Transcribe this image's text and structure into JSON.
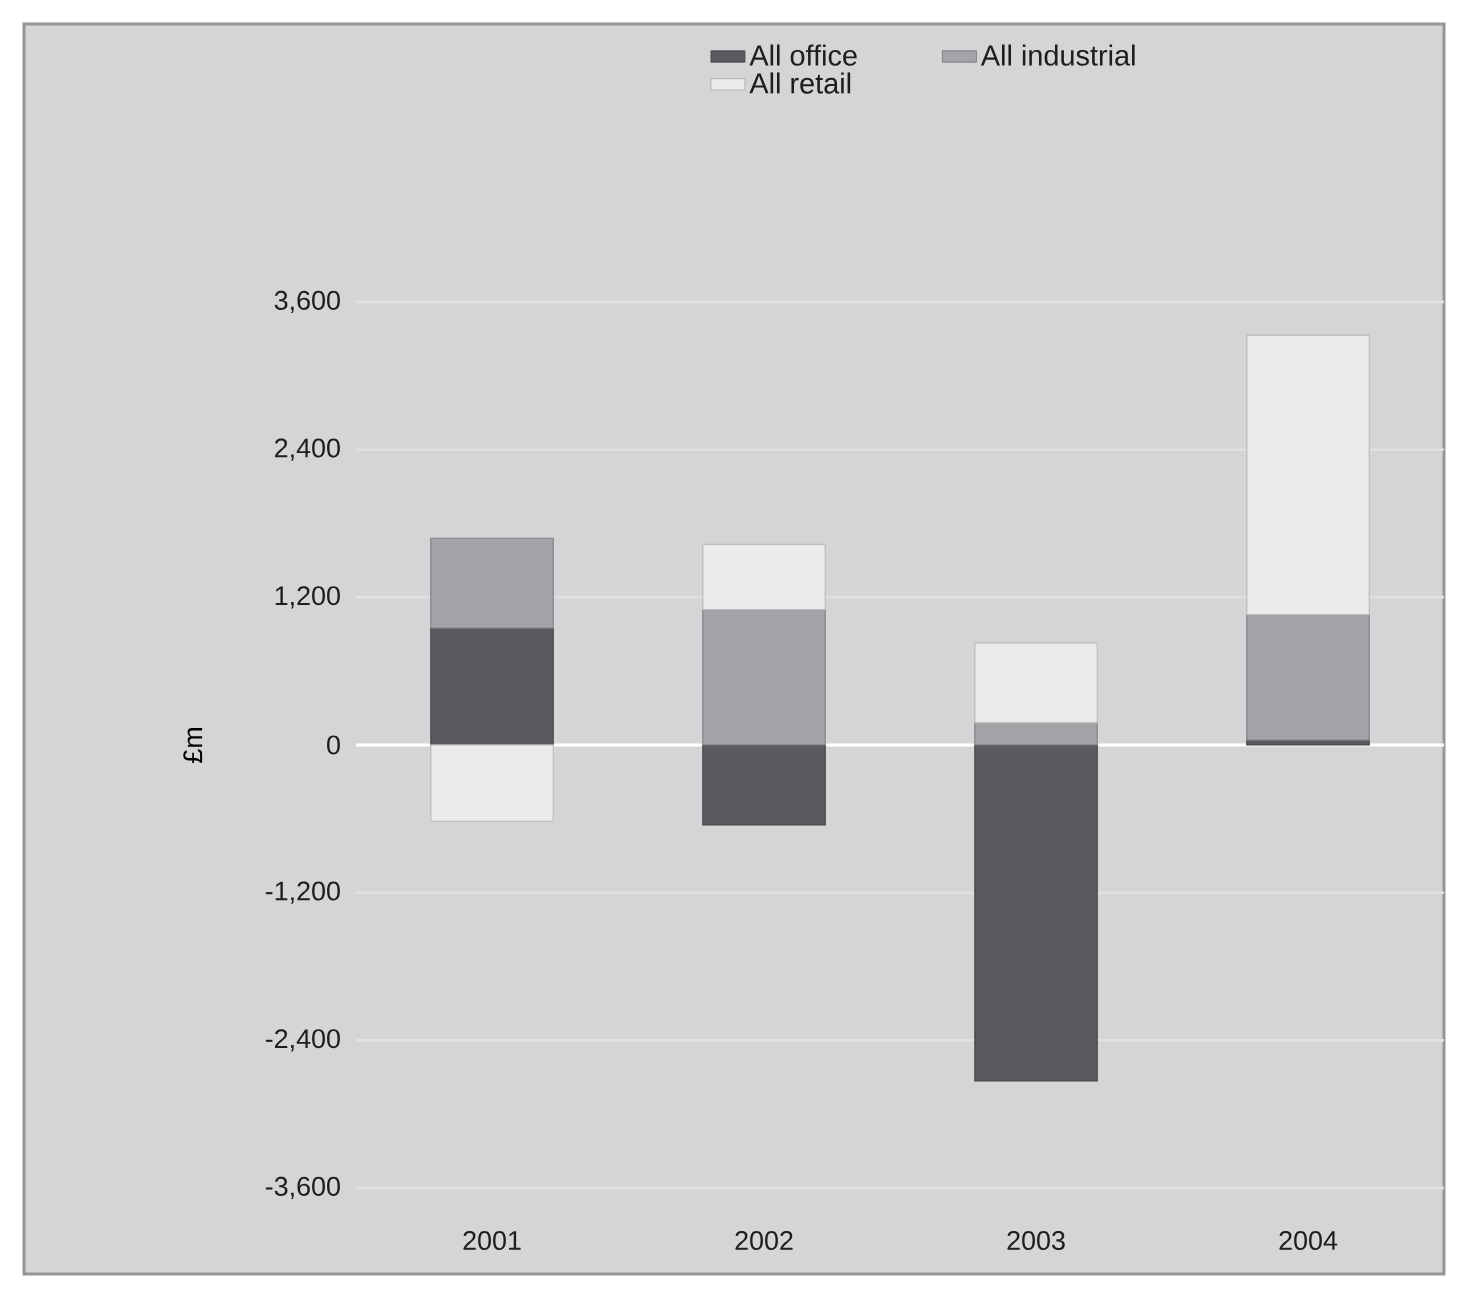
{
  "chart_data": {
    "type": "bar",
    "stacked": true,
    "ylabel": "£m",
    "categories": [
      "2001",
      "2002",
      "2003",
      "2004"
    ],
    "series": [
      {
        "name": "All office",
        "color": "#5a5b5e",
        "values": [
          950,
          -650,
          -2730,
          40
        ]
      },
      {
        "name": "All industrial",
        "color": "#a3a4a7",
        "values": [
          730,
          1100,
          180,
          1020
        ]
      },
      {
        "name": "All retail",
        "color": "#ebebeb",
        "values": [
          -620,
          530,
          650,
          2270
        ]
      }
    ],
    "ylim": [
      -3600,
      3600
    ],
    "yticks": [
      {
        "value": -3600,
        "label": "-3,600"
      },
      {
        "value": -2400,
        "label": "-2,400"
      },
      {
        "value": -1200,
        "label": "-1,200"
      },
      0,
      {
        "value": 1200,
        "label": "1,200"
      },
      {
        "value": 2400,
        "label": "2,400"
      },
      {
        "value": 3600,
        "label": "3,600"
      }
    ],
    "grid": "y",
    "legend": "top"
  }
}
